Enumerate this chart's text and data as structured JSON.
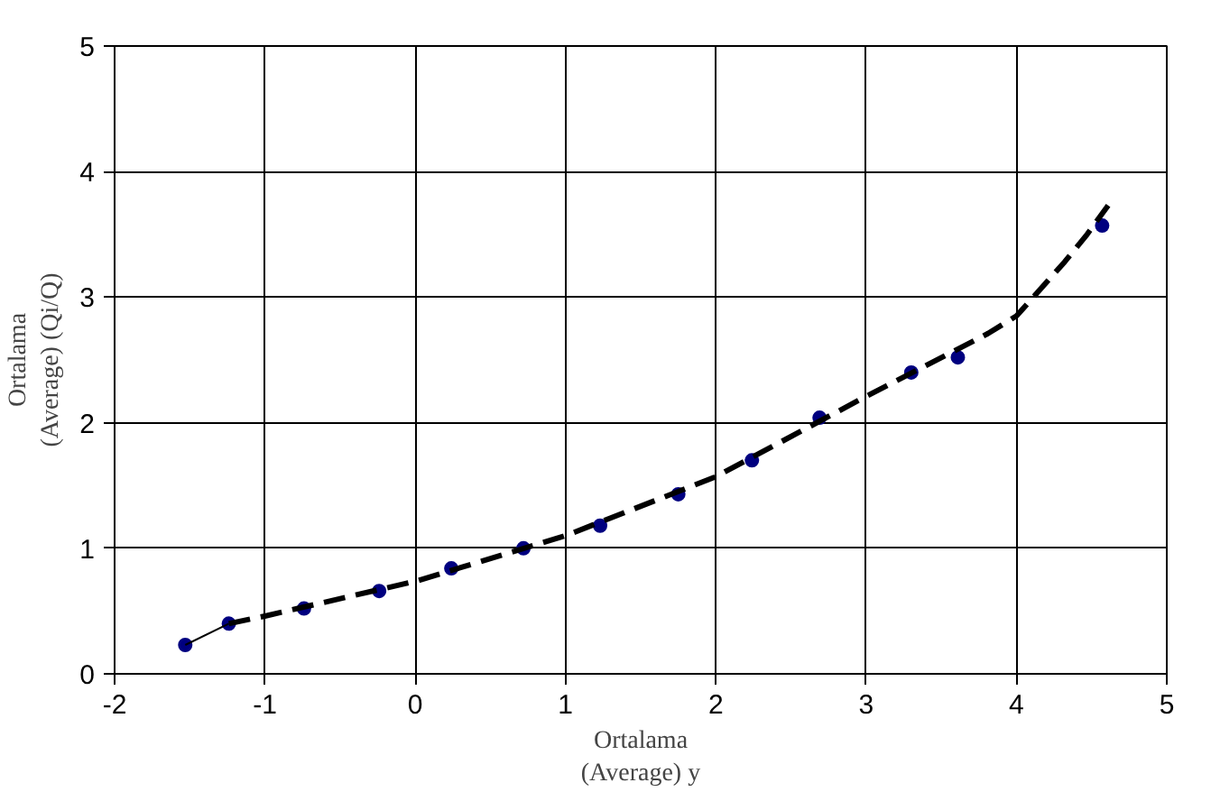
{
  "chart_data": {
    "type": "scatter",
    "xlabel": "Ortalama\n(Average) y",
    "ylabel": "Ortalama\n(Average) (Qi/Q)",
    "xlim": [
      -2,
      5
    ],
    "ylim": [
      0,
      5
    ],
    "xticks": [
      -2,
      -1,
      0,
      1,
      2,
      3,
      4,
      5
    ],
    "yticks": [
      0,
      1,
      2,
      3,
      4,
      5
    ],
    "grid": true,
    "series": [
      {
        "marker": "circle",
        "color": "#000080",
        "x": [
          -1.53,
          -1.24,
          -0.74,
          -0.24,
          0.24,
          0.72,
          1.23,
          1.75,
          2.24,
          2.69,
          3.3,
          3.61,
          4.57
        ],
        "values": [
          0.23,
          0.4,
          0.52,
          0.66,
          0.84,
          1.0,
          1.18,
          1.43,
          1.7,
          2.04,
          2.4,
          2.52,
          3.57
        ]
      },
      {
        "type": "line",
        "marker": "none",
        "line_style": "solid",
        "color": "#000000",
        "x": [
          -1.53,
          -1.24
        ],
        "values": [
          0.23,
          0.4
        ]
      },
      {
        "type": "line",
        "marker": "none",
        "line_style": "dashed",
        "color": "#000000",
        "x": [
          -1.24,
          -1.0,
          0.01,
          1.0,
          2.0,
          3.0,
          3.81,
          4.0,
          4.32,
          4.47,
          4.61
        ],
        "values": [
          0.4,
          0.46,
          0.74,
          1.1,
          1.57,
          2.21,
          2.71,
          2.85,
          3.28,
          3.5,
          3.73
        ]
      }
    ]
  }
}
